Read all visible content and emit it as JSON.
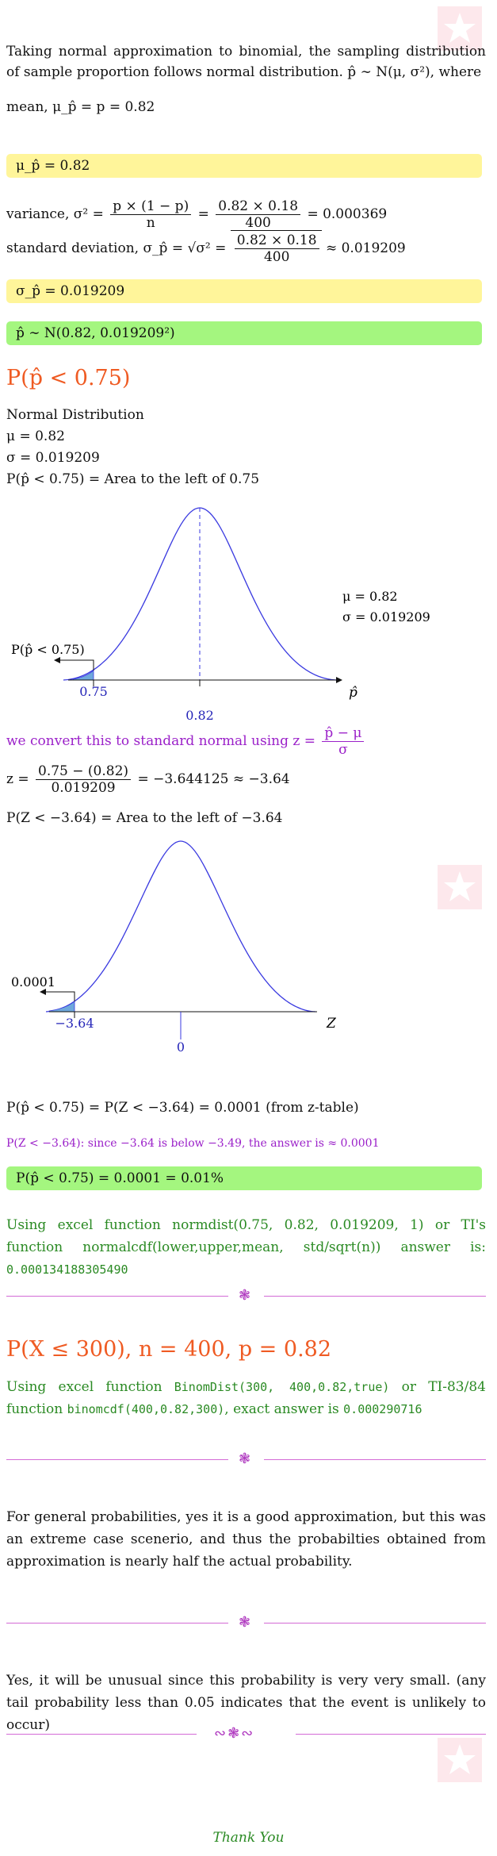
{
  "intro": {
    "text": "Taking normal approximation to binomial, the sampling distribution of sample proportion follows normal distribution. p̂ ∼ N(μ, σ²), where",
    "mean_line": "mean, μ_p̂ = p = 0.82"
  },
  "mean_box": "μ_p̂ = 0.82",
  "variance": {
    "label": "variance, σ² =",
    "frac1_num": "p × (1 − p)",
    "frac1_den": "n",
    "eq": "=",
    "frac2_num": "0.82 × 0.18",
    "frac2_den": "400",
    "result": "= 0.000369"
  },
  "sd": {
    "label": "standard deviation, σ_p̂ = √σ² =",
    "frac_num": "0.82 × 0.18",
    "frac_den": "400",
    "result": "≈ 0.019209"
  },
  "sd_box": "σ_p̂ = 0.019209",
  "dist_box": "p̂ ∼ N(0.82, 0.019209²)",
  "part1": {
    "heading": "P(p̂ < 0.75)",
    "nd_label": "Normal Distribution",
    "mu": "μ = 0.82",
    "sigma": "σ = 0.019209",
    "area": "P(p̂ < 0.75) = Area to the left of 0.75",
    "chart1": {
      "mu_label": "μ = 0.82",
      "sigma_label": "σ = 0.019209",
      "tail_label": "P(p̂ < 0.75)",
      "left_tick": "0.75",
      "center_tick": "0.82",
      "axis_label": "p̂"
    },
    "convert_text": "we convert this to standard normal using z =",
    "convert_num": "p̂ − μ",
    "convert_den": "σ",
    "z_label": "z =",
    "z_num": "0.75 − (0.82)",
    "z_den": "0.019209",
    "z_result": "= −3.644125 ≈ −3.64",
    "z_area": "P(Z < −3.64) = Area to the left of −3.64",
    "chart2": {
      "tail_label": "0.0001",
      "left_tick": "−3.64",
      "center_tick": "0",
      "axis_label": "Z"
    },
    "result_line": "P(p̂ < 0.75) = P(Z < −3.64) = 0.0001 (from z-table)",
    "note": "P(Z < −3.64): since −3.64 is below −3.49, the answer is ≈ 0.0001",
    "answer_box": "P(p̂ < 0.75) = 0.0001 = 0.01%",
    "excel_text": "Using excel function normdist(0.75, 0.82, 0.019209, 1) or TI's function normalcdf(lower,upper,mean, std/sqrt(n)) answer is:",
    "excel_value": "0.000134188305490"
  },
  "part2": {
    "heading": "P(X ≤ 300), n = 400, p = 0.82",
    "t1": "Using excel function",
    "code1": "BinomDist(300, 400,0.82,true)",
    "t2": "or TI-83/84 function",
    "code2": "binomcdf(400,0.82,300)",
    "t3": ", exact answer is",
    "value": "0.000290716"
  },
  "part3": {
    "text": "For general probabilities, yes it is a good approximation, but this was an extreme case scenerio, and thus the probabilties obtained from approximation is nearly half the actual probability."
  },
  "part4": {
    "text": "Yes, it will be unusual since this probability is very very small. (any tail probability less than 0.05 indicates that the event is unlikely to occur)"
  },
  "closing": "Thank You",
  "colors": {
    "heading": "#ef5b23",
    "yellow_box": "#fff59a",
    "green_box": "#a4f67f",
    "curve": "#3a3ae0",
    "purple": "#9b21c9",
    "green_text": "#2a8a23"
  }
}
